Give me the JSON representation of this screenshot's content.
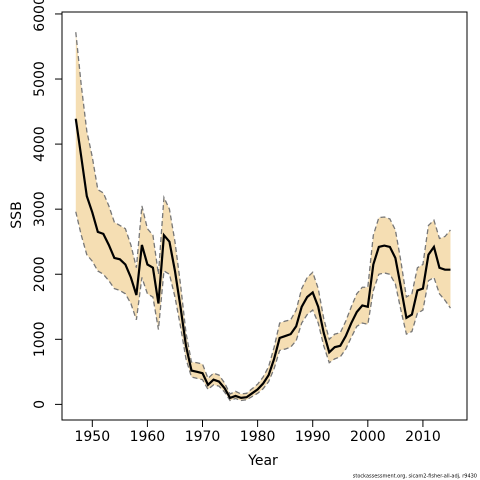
{
  "chart_data": {
    "type": "band-line",
    "xlabel": "Year",
    "ylabel": "SSB",
    "caption": "stockassessment.org, sicam2-fisher-all-adj, r9430",
    "x": [
      1947,
      1948,
      1949,
      1950,
      1951,
      1952,
      1953,
      1954,
      1955,
      1956,
      1957,
      1958,
      1959,
      1960,
      1961,
      1962,
      1963,
      1964,
      1965,
      1966,
      1967,
      1968,
      1969,
      1970,
      1971,
      1972,
      1973,
      1974,
      1975,
      1976,
      1977,
      1978,
      1979,
      1980,
      1981,
      1982,
      1983,
      1984,
      1985,
      1986,
      1987,
      1988,
      1989,
      1990,
      1991,
      1992,
      1993,
      1994,
      1995,
      1996,
      1997,
      1998,
      1999,
      2000,
      2001,
      2002,
      2003,
      2004,
      2005,
      2006,
      2007,
      2008,
      2009,
      2010,
      2011,
      2012,
      2013,
      2014,
      2015
    ],
    "values": [
      4390,
      3800,
      3200,
      2950,
      2650,
      2620,
      2450,
      2250,
      2230,
      2150,
      1950,
      1680,
      2450,
      2150,
      2100,
      1550,
      2600,
      2500,
      2050,
      1500,
      900,
      520,
      500,
      480,
      300,
      380,
      350,
      250,
      100,
      130,
      100,
      110,
      170,
      230,
      320,
      450,
      700,
      1020,
      1050,
      1080,
      1200,
      1500,
      1650,
      1720,
      1500,
      1100,
      800,
      880,
      900,
      1050,
      1250,
      1420,
      1520,
      1500,
      2150,
      2420,
      2440,
      2420,
      2250,
      1800,
      1330,
      1380,
      1750,
      1780,
      2300,
      2420,
      2100,
      2070,
      2070
    ],
    "upper": [
      5720,
      4900,
      4200,
      3800,
      3300,
      3250,
      3050,
      2800,
      2750,
      2700,
      2450,
      2100,
      3050,
      2700,
      2600,
      2000,
      3180,
      3000,
      2500,
      1850,
      1100,
      650,
      640,
      620,
      400,
      480,
      450,
      330,
      160,
      200,
      160,
      170,
      240,
      310,
      420,
      580,
      880,
      1250,
      1280,
      1300,
      1450,
      1780,
      1950,
      2030,
      1780,
      1320,
      1000,
      1080,
      1100,
      1280,
      1500,
      1700,
      1800,
      1800,
      2600,
      2870,
      2880,
      2850,
      2680,
      2200,
      1650,
      1700,
      2100,
      2150,
      2750,
      2830,
      2550,
      2580,
      2680
    ],
    "lower": [
      2960,
      2600,
      2300,
      2200,
      2050,
      2000,
      1900,
      1780,
      1750,
      1700,
      1550,
      1300,
      1950,
      1700,
      1650,
      1150,
      2050,
      2000,
      1650,
      1200,
      700,
      420,
      400,
      380,
      230,
      300,
      280,
      190,
      60,
      90,
      60,
      70,
      120,
      170,
      240,
      350,
      550,
      830,
      850,
      880,
      980,
      1250,
      1380,
      1450,
      1250,
      900,
      640,
      700,
      730,
      850,
      1030,
      1200,
      1250,
      1230,
      1750,
      2000,
      2020,
      2000,
      1850,
      1450,
      1080,
      1120,
      1400,
      1450,
      1900,
      1950,
      1700,
      1600,
      1480
    ],
    "color": "#000000",
    "band_color": "#f5deb3",
    "band_edge_color": "#777777",
    "xlim": [
      1944.5,
      2018
    ],
    "ylim": [
      -240,
      6030
    ],
    "xticks": [
      1950,
      1960,
      1970,
      1980,
      1990,
      2000,
      2010
    ],
    "yticks": [
      0,
      1000,
      2000,
      3000,
      4000,
      5000,
      6000
    ]
  }
}
